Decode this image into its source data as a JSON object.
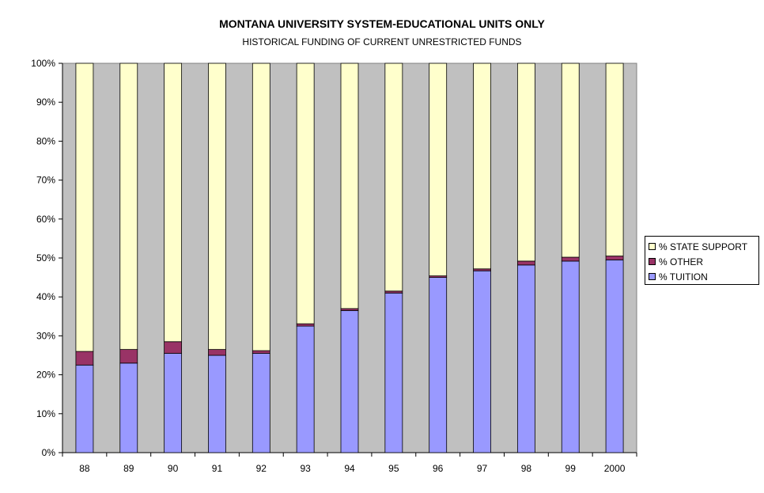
{
  "chart_data": {
    "type": "bar",
    "stacked": true,
    "title": "MONTANA UNIVERSITY SYSTEM-EDUCATIONAL UNITS ONLY",
    "subtitle": "HISTORICAL FUNDING OF CURRENT UNRESTRICTED FUNDS",
    "categories": [
      "88",
      "89",
      "90",
      "91",
      "92",
      "93",
      "94",
      "95",
      "96",
      "97",
      "98",
      "99",
      "2000"
    ],
    "series": [
      {
        "name": "% TUITION",
        "color": "#9999ff",
        "values": [
          22.5,
          23,
          25.5,
          25,
          25.5,
          32.5,
          36.5,
          41,
          45,
          46.7,
          48.2,
          49.2,
          49.5
        ]
      },
      {
        "name": "% OTHER",
        "color": "#993366",
        "values": [
          3.5,
          3.5,
          3,
          1.5,
          0.7,
          0.6,
          0.5,
          0.5,
          0.4,
          0.5,
          1,
          1,
          1
        ]
      },
      {
        "name": "% STATE SUPPORT",
        "color": "#ffffcc",
        "values": [
          74,
          73.5,
          71.5,
          73.5,
          73.8,
          66.9,
          63,
          58.5,
          54.6,
          52.8,
          50.8,
          49.8,
          49.5
        ]
      }
    ],
    "ylim": [
      0,
      100
    ],
    "yticks": [
      "0%",
      "10%",
      "20%",
      "30%",
      "40%",
      "50%",
      "60%",
      "70%",
      "80%",
      "90%",
      "100%"
    ],
    "xlabel": "",
    "ylabel": "",
    "grid": false,
    "plot_background": "#c0c0c0",
    "legend_position": "right",
    "legend_order": [
      "% STATE SUPPORT",
      "% OTHER",
      "% TUITION"
    ]
  }
}
